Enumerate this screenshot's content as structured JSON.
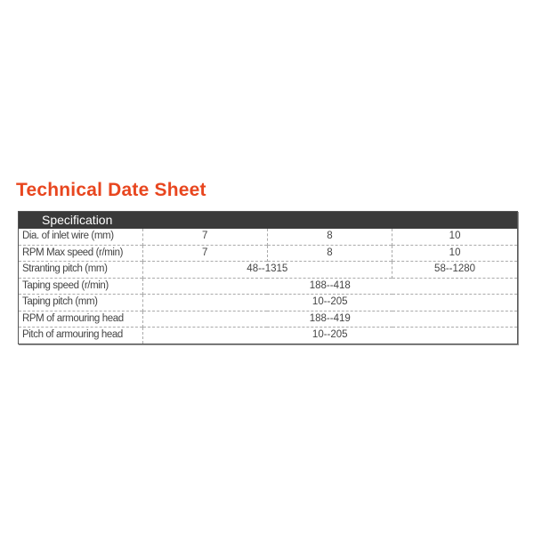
{
  "title": "Technical Date Sheet",
  "header": "Specification",
  "colors": {
    "title": "#e8461f",
    "header_bg": "#3a3a3a"
  },
  "rows": [
    {
      "label": "Dia. of inlet wire (mm)",
      "values": [
        "7",
        "8",
        "10"
      ]
    },
    {
      "label": "RPM Max speed (r/min)",
      "values": [
        "7",
        "8",
        "10"
      ]
    },
    {
      "label": "Stranting pitch (mm)",
      "values": [
        "48--1315",
        "58--1280"
      ]
    },
    {
      "label": "Taping speed (r/min)",
      "values": [
        "188--418"
      ]
    },
    {
      "label": "Taping pitch (mm)",
      "values": [
        "10--205"
      ]
    },
    {
      "label": "RPM of armouring head",
      "values": [
        "188--419"
      ]
    },
    {
      "label": "Pitch of armouring head",
      "values": [
        "10--205"
      ]
    }
  ]
}
